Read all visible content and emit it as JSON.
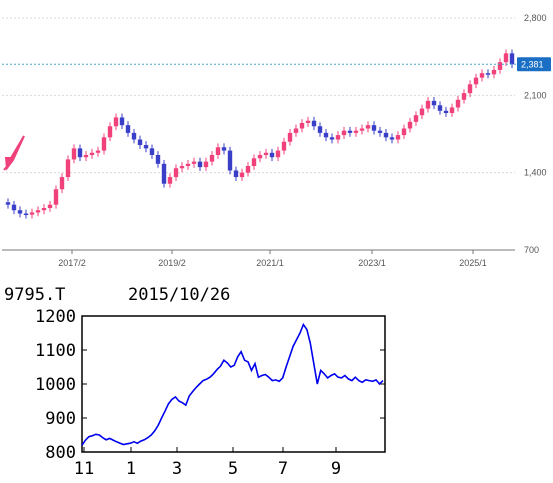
{
  "chart_data": [
    {
      "type": "candlestick",
      "y_axis_side": "right",
      "ylim": [
        700,
        2800
      ],
      "y_ticks": [
        "2,800",
        "2,100",
        "1,400",
        "700"
      ],
      "x_ticks": [
        "2017/2",
        "2019/2",
        "2021/1",
        "2023/1",
        "2025/1"
      ],
      "current_price_label": "2,381",
      "current_price": 2381,
      "grid": "dashed horizontal",
      "colors": {
        "up": "#f0417a",
        "down": "#3a3fc8",
        "price_line": "#4aa3c8",
        "price_badge": "#1a6fc4",
        "arrow": "#f0417a"
      },
      "approx_close_series": [
        1110,
        1060,
        1030,
        1020,
        1040,
        1060,
        1080,
        1110,
        1250,
        1360,
        1520,
        1620,
        1540,
        1560,
        1580,
        1600,
        1720,
        1820,
        1900,
        1830,
        1760,
        1700,
        1650,
        1620,
        1560,
        1480,
        1300,
        1360,
        1440,
        1460,
        1480,
        1500,
        1450,
        1500,
        1560,
        1630,
        1600,
        1420,
        1360,
        1400,
        1460,
        1530,
        1560,
        1580,
        1540,
        1600,
        1680,
        1760,
        1800,
        1850,
        1870,
        1820,
        1760,
        1720,
        1700,
        1740,
        1780,
        1760,
        1780,
        1800,
        1830,
        1780,
        1760,
        1720,
        1700,
        1740,
        1800,
        1860,
        1920,
        1980,
        2050,
        2010,
        1960,
        1940,
        1990,
        2060,
        2120,
        2200,
        2260,
        2300,
        2290,
        2330,
        2400,
        2480,
        2381
      ]
    },
    {
      "type": "line",
      "header": {
        "ticker": "9795.T",
        "date": "2015/10/26"
      },
      "ylim": [
        800,
        1200
      ],
      "y_ticks": [
        "1200",
        "1100",
        "1000",
        "900",
        "800"
      ],
      "x_ticks": [
        "11",
        "1",
        "3",
        "5",
        "7",
        "9"
      ],
      "line_color": "#0000ee",
      "values": [
        820,
        835,
        845,
        848,
        852,
        850,
        842,
        836,
        840,
        835,
        830,
        826,
        822,
        824,
        826,
        830,
        826,
        832,
        836,
        842,
        850,
        862,
        878,
        900,
        920,
        942,
        955,
        962,
        950,
        945,
        938,
        965,
        978,
        990,
        1000,
        1010,
        1014,
        1020,
        1030,
        1042,
        1052,
        1070,
        1062,
        1050,
        1055,
        1080,
        1095,
        1070,
        1065,
        1040,
        1060,
        1020,
        1025,
        1028,
        1020,
        1010,
        1012,
        1008,
        1018,
        1050,
        1080,
        1110,
        1130,
        1150,
        1175,
        1160,
        1120,
        1060,
        1000,
        1040,
        1030,
        1018,
        1025,
        1030,
        1020,
        1018,
        1025,
        1015,
        1010,
        1020,
        1010,
        1005,
        1012,
        1010,
        1008,
        1012,
        1000,
        1010
      ]
    }
  ]
}
